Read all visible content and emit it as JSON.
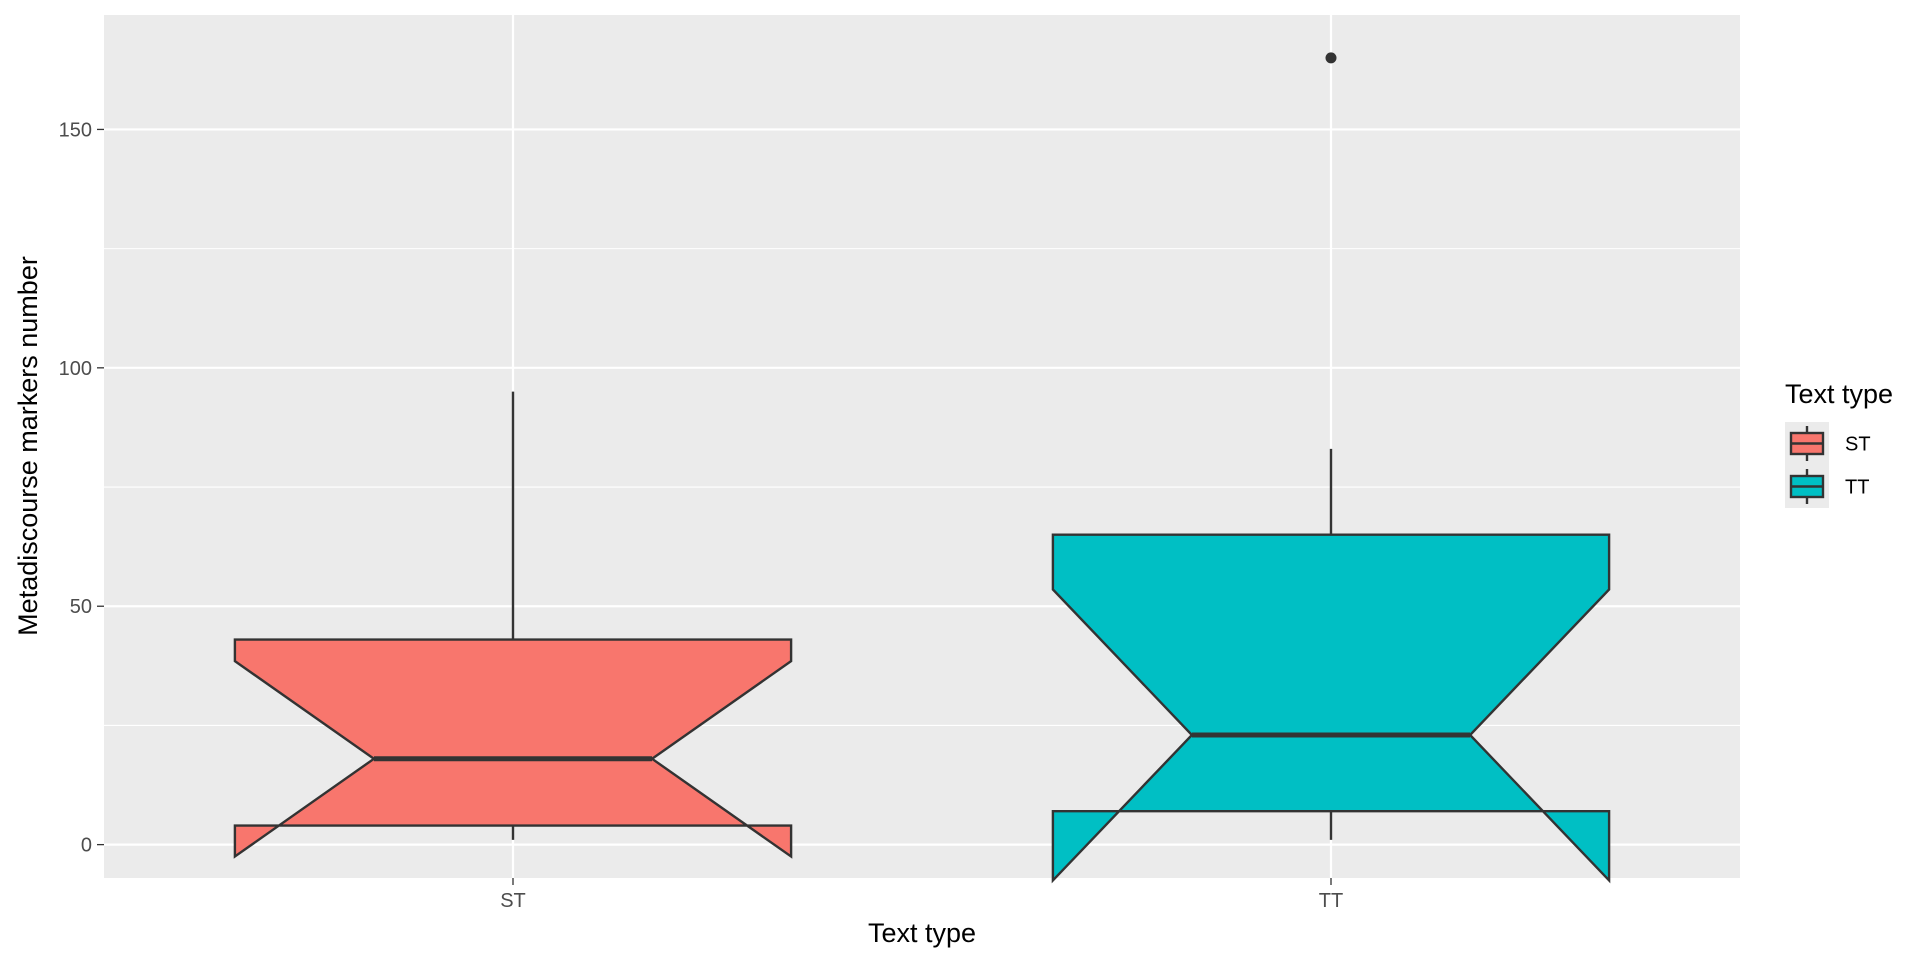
{
  "chart_data": {
    "type": "boxplot",
    "notched": true,
    "title": "",
    "xlabel": "Text type",
    "ylabel": "Metadiscourse markers number",
    "ylim": [
      -7,
      174
    ],
    "yticks": [
      0,
      50,
      100,
      150
    ],
    "grid": true,
    "legend": {
      "title": "Text type",
      "position": "right",
      "entries": [
        "ST",
        "TT"
      ]
    },
    "categories": [
      "ST",
      "TT"
    ],
    "series": [
      {
        "category": "ST",
        "color": "#F8766D",
        "whisker_low": 1,
        "q1": 4,
        "median": 18,
        "q3": 43,
        "whisker_high": 95,
        "notch_low": -2.5,
        "notch_high": 38.5,
        "outliers": []
      },
      {
        "category": "TT",
        "color": "#00BFC4",
        "whisker_low": 1,
        "q1": 7,
        "median": 23,
        "q3": 65,
        "whisker_high": 83,
        "notch_low": -7.5,
        "notch_high": 53.5,
        "outliers": [
          165
        ]
      }
    ]
  }
}
